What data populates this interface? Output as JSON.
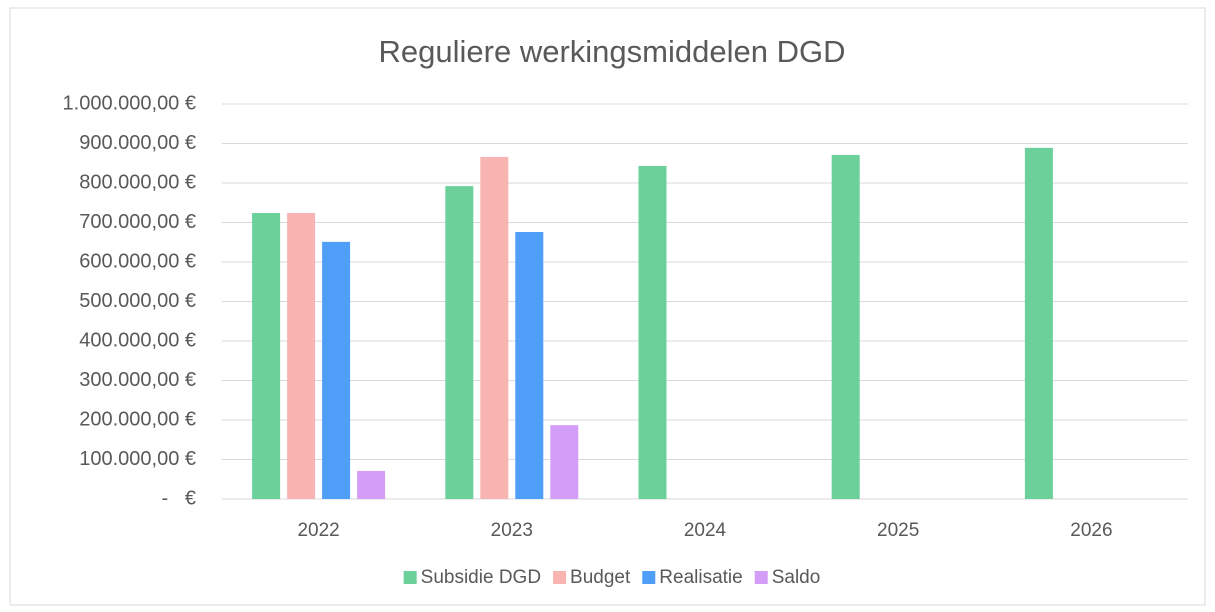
{
  "chart_data": {
    "type": "bar",
    "title": "Reguliere werkingsmiddelen DGD",
    "categories": [
      "2022",
      "2023",
      "2024",
      "2025",
      "2026"
    ],
    "series": [
      {
        "name": "Subsidie DGD",
        "color": "#6bd09a",
        "values": [
          724000,
          792000,
          843000,
          871000,
          889000
        ]
      },
      {
        "name": "Budget",
        "color": "#f8b4b0",
        "values": [
          724000,
          866000,
          null,
          null,
          null
        ]
      },
      {
        "name": "Realisatie",
        "color": "#4f9ef8",
        "values": [
          651000,
          676000,
          null,
          null,
          null
        ]
      },
      {
        "name": "Saldo",
        "color": "#d49ef8",
        "values": [
          71000,
          187000,
          null,
          null,
          null
        ]
      }
    ],
    "ylim": [
      0,
      1000000
    ],
    "yticks": [
      {
        "value": 0,
        "label": "-   €"
      },
      {
        "value": 100000,
        "label": "100.000,00 €"
      },
      {
        "value": 200000,
        "label": "200.000,00 €"
      },
      {
        "value": 300000,
        "label": "300.000,00 €"
      },
      {
        "value": 400000,
        "label": "400.000,00 €"
      },
      {
        "value": 500000,
        "label": "500.000,00 €"
      },
      {
        "value": 600000,
        "label": "600.000,00 €"
      },
      {
        "value": 700000,
        "label": "700.000,00 €"
      },
      {
        "value": 800000,
        "label": "800.000,00 €"
      },
      {
        "value": 900000,
        "label": "900.000,00 €"
      },
      {
        "value": 1000000,
        "label": "1.000.000,00 €"
      }
    ],
    "grid": true,
    "legend": "bottom"
  }
}
